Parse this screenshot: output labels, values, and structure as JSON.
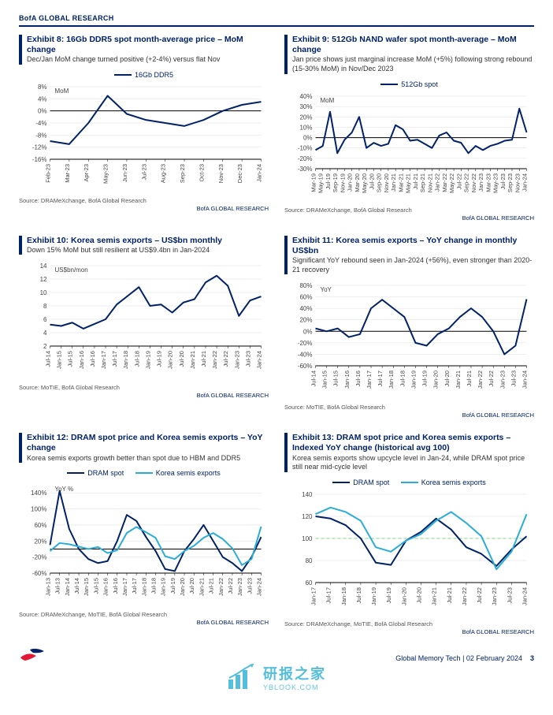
{
  "header": {
    "brand": "BofA GLOBAL RESEARCH"
  },
  "footer": {
    "report": "Global Memory Tech",
    "date": "02 February 2024",
    "page": "3"
  },
  "watermark": {
    "cn": "研报之家",
    "en": "YBLOOK.COM"
  },
  "brand_research": "BofA GLOBAL RESEARCH",
  "colors": {
    "bofa_navy": "#012169",
    "axis": "#000000",
    "grid": "#cccccc",
    "cyan": "#2aaed8",
    "dash_green": "#8fd18f"
  },
  "ex8": {
    "title": "Exhibit 8: 16Gb DDR5 spot month-average price – MoM change",
    "subtitle": "Dec/Jan MoM change turned positive (+2-4%) versus flat Nov",
    "legend": "16Gb DDR5",
    "y_label": "MoM",
    "ylim": [
      -16,
      8
    ],
    "ytick_step": 4,
    "categories": [
      "Feb-23",
      "Mar-23",
      "Apr-23",
      "May-23",
      "Jun-23",
      "Jul-23",
      "Aug-23",
      "Sep-23",
      "Oct-23",
      "Nov-23",
      "Dec-23",
      "Jan-24"
    ],
    "values": [
      -10,
      -11,
      -4,
      5,
      -1,
      -3,
      -4,
      -5,
      -3,
      0,
      2,
      3
    ],
    "line_color": "#012169",
    "source": "Source: DRAMeXchange, BofA Global Research"
  },
  "ex9": {
    "title": "Exhibit 9: 512Gb NAND wafer spot month-average – MoM change",
    "subtitle": "Jan price shows just marginal increase MoM (+5%) following strong rebound (15-30% MoM) in Nov/Dec 2023",
    "legend": "512Gb spot",
    "y_label": "MoM",
    "ylim": [
      -30,
      40
    ],
    "ytick_step": 10,
    "categories": [
      "Mar-19",
      "May-19",
      "Jul-19",
      "Sep-19",
      "Nov-19",
      "Jan-20",
      "Mar-20",
      "May-20",
      "Jul-20",
      "Sep-20",
      "Nov-20",
      "Jan-21",
      "Mar-21",
      "May-21",
      "Jul-21",
      "Sep-21",
      "Nov-21",
      "Jan-22",
      "Mar-22",
      "May-22",
      "Jul-22",
      "Sep-22",
      "Nov-22",
      "Jan-23",
      "Mar-23",
      "May-23",
      "Jul-23",
      "Sep-23",
      "Nov-23",
      "Jan-24"
    ],
    "values": [
      -12,
      -8,
      25,
      -15,
      -2,
      5,
      20,
      -10,
      -5,
      -8,
      -6,
      12,
      8,
      -3,
      -2,
      -6,
      -10,
      2,
      5,
      -3,
      -5,
      -15,
      -8,
      -12,
      -8,
      -6,
      -3,
      -2,
      28,
      5
    ],
    "line_color": "#012169",
    "source": "Source: DRAMeXchange, BofA Global Research"
  },
  "ex10": {
    "title": "Exhibit 10: Korea semis exports – US$bn monthly",
    "subtitle": "Down 15% MoM but still resilient at US$9.4bn in Jan-2024",
    "y_label": "US$bn/mon",
    "ylim": [
      2,
      14
    ],
    "ytick_step": 2,
    "categories": [
      "Jul-14",
      "Jan-15",
      "Jul-15",
      "Jan-16",
      "Jul-16",
      "Jan-17",
      "Jul-17",
      "Jan-18",
      "Jul-18",
      "Jan-19",
      "Jul-19",
      "Jan-20",
      "Jul-20",
      "Jan-21",
      "Jul-21",
      "Jan-22",
      "Jul-22",
      "Jan-23",
      "Jul-23",
      "Jan-24"
    ],
    "values": [
      5.2,
      5.0,
      5.5,
      4.6,
      5.3,
      6.0,
      8.2,
      9.5,
      10.8,
      8.0,
      8.2,
      7.0,
      8.5,
      9.0,
      11.5,
      12.5,
      11.0,
      6.5,
      8.8,
      9.4
    ],
    "line_color": "#012169",
    "source": "Source: MoTIE, BofA Global Research"
  },
  "ex11": {
    "title": "Exhibit 11: Korea semis exports – YoY change in monthly US$bn",
    "subtitle": "Significant YoY rebound seen in Jan-2024 (+56%), even stronger than 2020-21 recovery",
    "y_label": "YoY",
    "ylim": [
      -60,
      80
    ],
    "ytick_step": 20,
    "categories": [
      "Jul-14",
      "Jan-15",
      "Jul-15",
      "Jan-16",
      "Jul-16",
      "Jan-17",
      "Jul-17",
      "Jan-18",
      "Jul-18",
      "Jan-19",
      "Jul-19",
      "Jan-20",
      "Jul-20",
      "Jan-21",
      "Jul-21",
      "Jan-22",
      "Jul-22",
      "Jan-23",
      "Jul-23",
      "Jan-24"
    ],
    "values": [
      5,
      0,
      5,
      -10,
      -5,
      40,
      55,
      40,
      25,
      -20,
      -25,
      -5,
      5,
      25,
      40,
      25,
      0,
      -40,
      -25,
      56
    ],
    "line_color": "#012169",
    "source": "Source: MoTIE, BofA Global Research"
  },
  "ex12": {
    "title": "Exhibit 12: DRAM spot price and Korea semis exports – YoY change",
    "subtitle": "Korea semis exports growth better than spot due to HBM and DDR5",
    "y_label": "YoY %",
    "ylim": [
      -60,
      160
    ],
    "ytick_step": 40,
    "categories": [
      "Jan-13",
      "Jul-13",
      "Jan-14",
      "Jul-14",
      "Jan-15",
      "Jul-15",
      "Jan-16",
      "Jul-16",
      "Jan-17",
      "Jul-17",
      "Jan-18",
      "Jul-18",
      "Jan-19",
      "Jul-19",
      "Jan-20",
      "Jul-20",
      "Jan-21",
      "Jul-21",
      "Jan-22",
      "Jul-22",
      "Jan-23",
      "Jul-23",
      "Jan-24"
    ],
    "series": [
      {
        "name": "DRAM spot",
        "color": "#012169",
        "values": [
          10,
          145,
          50,
          0,
          -25,
          -35,
          -30,
          20,
          85,
          70,
          30,
          -5,
          -50,
          -55,
          -5,
          25,
          60,
          20,
          -20,
          -35,
          -55,
          -20,
          30
        ]
      },
      {
        "name": "Korea semis exports",
        "color": "#2aaed8",
        "values": [
          -5,
          15,
          12,
          6,
          0,
          5,
          -10,
          -3,
          40,
          55,
          42,
          28,
          -18,
          -25,
          -5,
          8,
          28,
          40,
          25,
          2,
          -40,
          -25,
          56
        ]
      }
    ],
    "source": "Source: DRAMeXchange, MoTIE, BofA Global Research"
  },
  "ex13": {
    "title": "Exhibit 13: DRAM spot price and Korea semis exports – Indexed YoY change (historical avg 100)",
    "subtitle": "Korea semis exports show upcycle level in Jan-24, while DRAM spot price still near mid-cycle level",
    "ylim": [
      60,
      140
    ],
    "ytick_step": 20,
    "categories": [
      "Jan-17",
      "Jul-17",
      "Jan-18",
      "Jul-18",
      "Jan-19",
      "Jul-19",
      "Jan-20",
      "Jul-20",
      "Jan-21",
      "Jul-21",
      "Jan-22",
      "Jul-22",
      "Jan-23",
      "Jul-23",
      "Jan-24"
    ],
    "baseline": 100,
    "series": [
      {
        "name": "DRAM spot",
        "color": "#012169",
        "values": [
          120,
          118,
          112,
          100,
          78,
          76,
          98,
          106,
          118,
          108,
          92,
          86,
          75,
          90,
          102
        ]
      },
      {
        "name": "Korea semis exports",
        "color": "#2aaed8",
        "values": [
          122,
          128,
          124,
          116,
          92,
          88,
          98,
          104,
          116,
          124,
          114,
          102,
          72,
          88,
          122
        ]
      }
    ],
    "source": "Source: DRAMeXchange, MoTIE, BofA Global Research"
  }
}
